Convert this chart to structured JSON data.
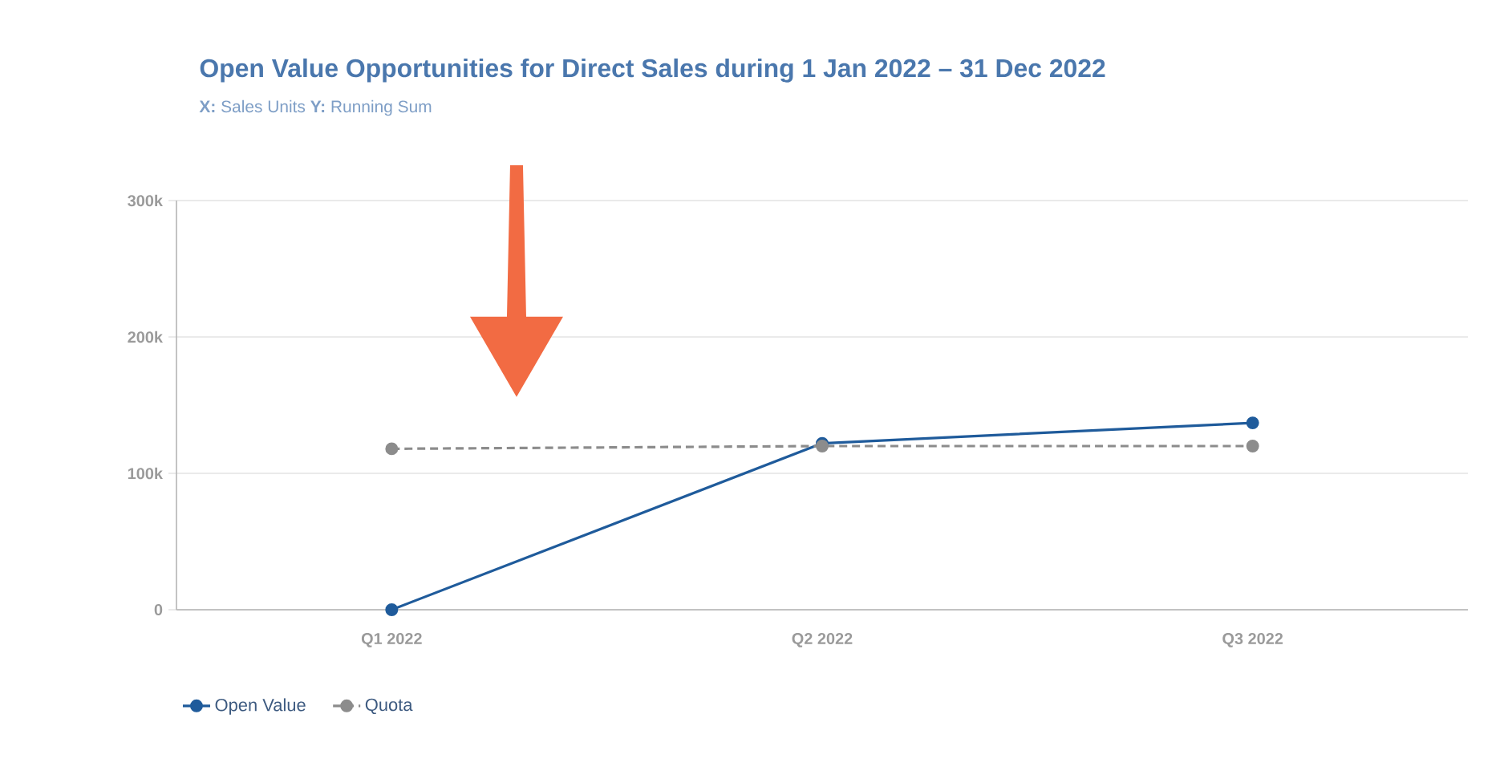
{
  "chart_data": {
    "type": "line",
    "title": "Open Value Opportunities for Direct Sales during 1 Jan 2022 – 31 Dec 2022",
    "subtitle": "**X:** Sales Units **Y:** Running Sum",
    "categories": [
      "Q1 2022",
      "Q2 2022",
      "Q3 2022"
    ],
    "series": [
      {
        "name": "Open Value",
        "color": "#1f5b9b",
        "values": [
          0,
          122000,
          137000
        ]
      },
      {
        "name": "Quota",
        "color": "#8c8c8c",
        "values": [
          118000,
          120000,
          120000
        ],
        "line_style": "dashed"
      }
    ],
    "ylim": [
      0,
      300000
    ],
    "yticks": [
      0,
      {
        "value": 100000,
        "label": "100k"
      },
      {
        "value": 200000,
        "label": "200k"
      },
      {
        "value": 300000,
        "label": "300k"
      }
    ],
    "grid": "y",
    "legend": "bottom left",
    "marker": "circle",
    "line_style": "solid"
  }
}
